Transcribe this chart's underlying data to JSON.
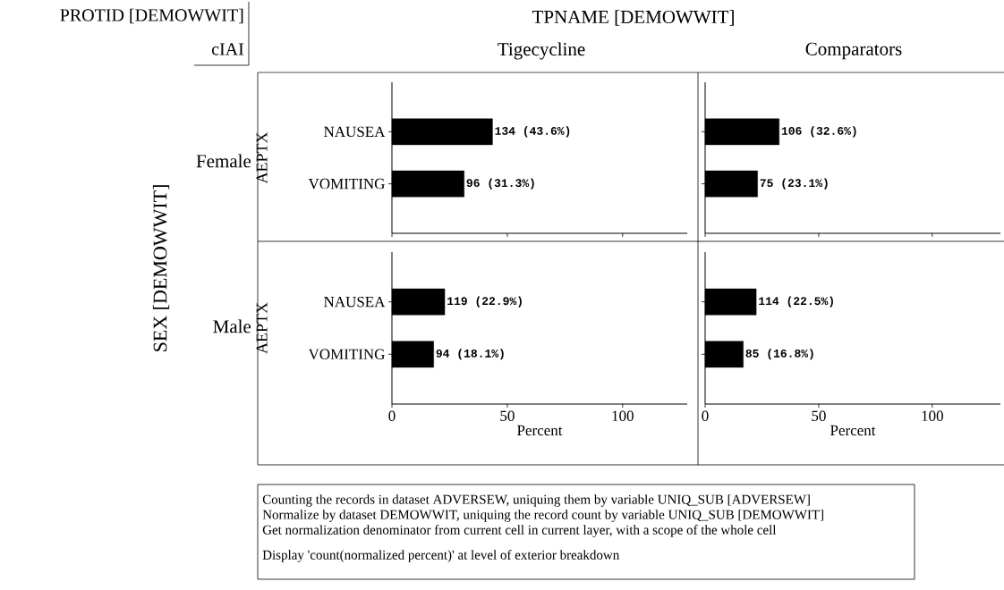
{
  "chart_data": [
    {
      "type": "bar",
      "orientation": "horizontal",
      "title": "Tigecycline",
      "annotations": [
        "Female"
      ],
      "ylabel": "AEPTX",
      "categories": [
        "NAUSEA",
        "VOMITING"
      ],
      "values": [
        43.6,
        31.3
      ],
      "value_labels": [
        "134 (43.6%)",
        "96 (31.3%)"
      ],
      "color": "#000000",
      "xlim": [
        0,
        128
      ],
      "xticks": [
        0,
        50,
        100
      ],
      "tick_labels": "y"
    },
    {
      "type": "bar",
      "orientation": "horizontal",
      "title": "Comparators",
      "categories": [
        null,
        null
      ],
      "values": [
        32.6,
        23.1
      ],
      "value_labels": [
        "106 (32.6%)",
        "75 (23.1%)"
      ],
      "color": "#000000",
      "xlim": [
        0,
        130
      ],
      "xticks": [
        0,
        50,
        100
      ],
      "tick_labels": false
    },
    {
      "type": "bar",
      "orientation": "horizontal",
      "annotations": [
        "Male"
      ],
      "ylabel": "AEPTX",
      "xlabel": "Percent",
      "categories": [
        "NAUSEA",
        "VOMITING"
      ],
      "values": [
        22.9,
        18.1
      ],
      "value_labels": [
        "119 (22.9%)",
        "94 (18.1%)"
      ],
      "color": "#000000",
      "xlim": [
        0,
        128
      ],
      "xticks": [
        0,
        50,
        100
      ]
    },
    {
      "type": "bar",
      "orientation": "horizontal",
      "xlabel": "Percent",
      "categories": [
        null,
        null
      ],
      "values": [
        22.5,
        16.8
      ],
      "value_labels": [
        "114 (22.5%)",
        "85 (16.8%)"
      ],
      "color": "#000000",
      "xlim": [
        0,
        130
      ],
      "xticks": [
        0,
        50,
        100
      ],
      "tick_labels": "x"
    },
    {
      "type": "other",
      "title": "TPNAME [DEMOWWIT]",
      "ylabel": "SEX [DEMOWWIT]",
      "annotations": [
        "PROTID [DEMOWWIT]",
        "cIAI",
        "Counting the records in dataset ADVERSEW, uniquing them by variable UNIQ_SUB [ADVERSEW]",
        "Normalize by dataset DEMOWWIT, uniquing the record count by variable UNIQ_SUB [DEMOWWIT]",
        "Get normalization denominator from current cell in current layer, with a scope of the whole cell",
        "Display 'count(normalized percent)' at level of exterior breakdown"
      ]
    }
  ]
}
